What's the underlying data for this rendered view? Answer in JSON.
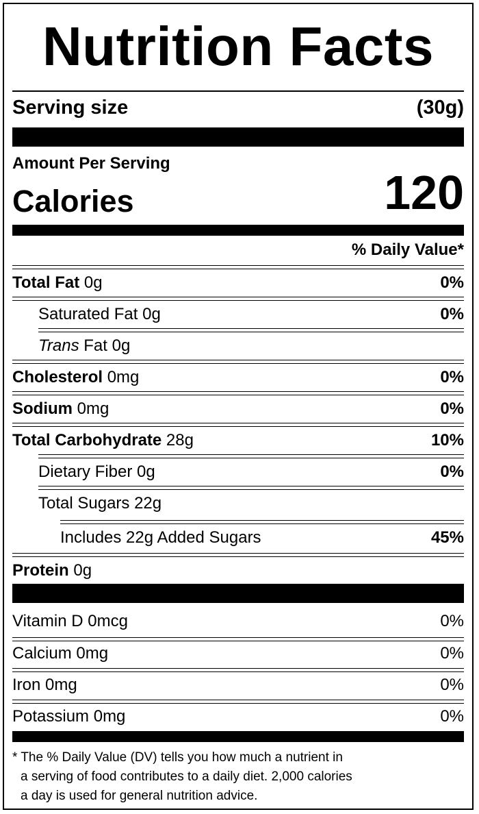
{
  "title": "Nutrition Facts",
  "serving": {
    "label": "Serving size",
    "value": "(30g)"
  },
  "amount_per_serving": "Amount Per Serving",
  "calories": {
    "label": "Calories",
    "value": "120"
  },
  "daily_value_header": "% Daily Value*",
  "nutrients": {
    "total_fat": {
      "name": "Total Fat",
      "amount": "0g",
      "dv": "0%"
    },
    "saturated_fat": {
      "name": "Saturated Fat",
      "amount": "0g",
      "dv": "0%"
    },
    "trans_fat": {
      "name_italic": "Trans",
      "name_rest": "Fat",
      "amount": "0g"
    },
    "cholesterol": {
      "name": "Cholesterol",
      "amount": "0mg",
      "dv": "0%"
    },
    "sodium": {
      "name": "Sodium",
      "amount": "0mg",
      "dv": "0%"
    },
    "total_carbohydrate": {
      "name": "Total Carbohydrate",
      "amount": "28g",
      "dv": "10%"
    },
    "dietary_fiber": {
      "name": "Dietary Fiber",
      "amount": "0g",
      "dv": "0%"
    },
    "total_sugars": {
      "name": "Total Sugars",
      "amount": "22g"
    },
    "added_sugars": {
      "text": "Includes 22g Added Sugars",
      "dv": "45%"
    },
    "protein": {
      "name": "Protein",
      "amount": "0g"
    }
  },
  "vitamins": [
    {
      "name": "Vitamin D",
      "amount": "0mcg",
      "dv": "0%"
    },
    {
      "name": "Calcium",
      "amount": "0mg",
      "dv": "0%"
    },
    {
      "name": "Iron",
      "amount": "0mg",
      "dv": "0%"
    },
    {
      "name": "Potassium",
      "amount": "0mg",
      "dv": "0%"
    }
  ],
  "footnote": [
    "* The % Daily Value (DV) tells you how much a nutrient in",
    "a serving of food contributes to a daily diet. 2,000 calories",
    "a day is used for general nutrition advice."
  ]
}
